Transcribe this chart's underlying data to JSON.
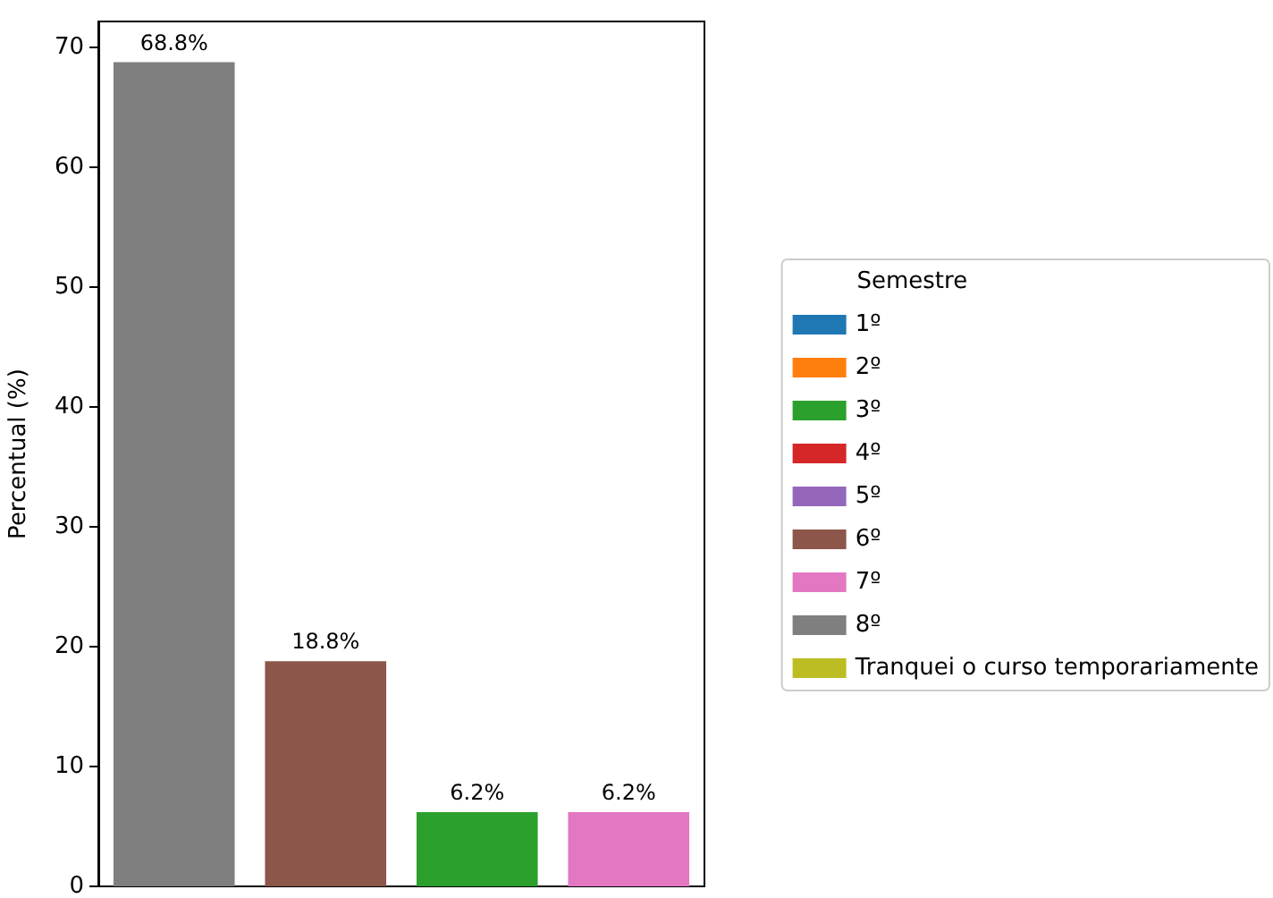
{
  "chart_data": {
    "type": "bar",
    "ylabel": "Percentual (%)",
    "legend_title": "Semestre",
    "categories": [
      null,
      null,
      null,
      null
    ],
    "stacked": true,
    "ylim": [
      0,
      72.2
    ],
    "yticks": [
      0,
      10,
      20,
      30,
      40,
      50,
      60,
      70
    ],
    "tick_labels": "y",
    "grid": false,
    "legend": "right",
    "series": [
      {
        "colors": [
          "#7f7f7f",
          "#8c564b",
          "#2ca02c",
          "#e377c2"
        ],
        "values": [
          68.8,
          18.8,
          6.2,
          6.2
        ],
        "value_labels": [
          "68.8%",
          "18.8%",
          "6.2%",
          "6.2%"
        ]
      },
      {
        "name": "1º",
        "color": "#1f77b4",
        "values": [
          null,
          null,
          null,
          null
        ]
      },
      {
        "name": "2º",
        "color": "#ff7f0e",
        "values": [
          null,
          null,
          null,
          null
        ]
      },
      {
        "name": "3º",
        "color": "#2ca02c",
        "values": [
          null,
          null,
          null,
          null
        ]
      },
      {
        "name": "4º",
        "color": "#d62728",
        "values": [
          null,
          null,
          null,
          null
        ]
      },
      {
        "name": "5º",
        "color": "#9467bd",
        "values": [
          null,
          null,
          null,
          null
        ]
      },
      {
        "name": "6º",
        "color": "#8c564b",
        "values": [
          null,
          null,
          null,
          null
        ]
      },
      {
        "name": "7º",
        "color": "#e377c2",
        "values": [
          null,
          null,
          null,
          null
        ]
      },
      {
        "name": "8º",
        "color": "#7f7f7f",
        "values": [
          null,
          null,
          null,
          null
        ]
      },
      {
        "name": "Tranquei o curso temporariamente",
        "color": "#bcbd22",
        "values": [
          null,
          null,
          null,
          null
        ]
      }
    ]
  }
}
